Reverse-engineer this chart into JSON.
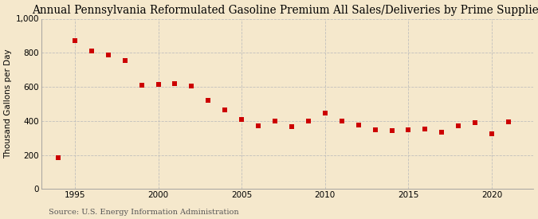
{
  "title": "Annual Pennsylvania Reformulated Gasoline Premium All Sales/Deliveries by Prime Supplier",
  "ylabel": "Thousand Gallons per Day",
  "source": "Source: U.S. Energy Information Administration",
  "background_color": "#f5e8cc",
  "plot_bg_color": "#f5e8cc",
  "marker_color": "#cc0000",
  "grid_color": "#bbbbbb",
  "years": [
    1994,
    1995,
    1996,
    1997,
    1998,
    1999,
    2000,
    2001,
    2002,
    2003,
    2004,
    2005,
    2006,
    2007,
    2008,
    2009,
    2010,
    2011,
    2012,
    2013,
    2014,
    2015,
    2016,
    2017,
    2018,
    2019,
    2020,
    2021
  ],
  "values": [
    182,
    872,
    810,
    785,
    755,
    608,
    612,
    620,
    607,
    522,
    467,
    410,
    370,
    400,
    365,
    398,
    448,
    400,
    375,
    350,
    345,
    348,
    354,
    333,
    370,
    388,
    325,
    393
  ],
  "ylim": [
    0,
    1000
  ],
  "xlim": [
    1993.0,
    2022.5
  ],
  "yticks": [
    0,
    200,
    400,
    600,
    800,
    1000
  ],
  "xticks": [
    1995,
    2000,
    2005,
    2010,
    2015,
    2020
  ],
  "title_fontsize": 9.8,
  "ylabel_fontsize": 7.5,
  "tick_fontsize": 7.5,
  "source_fontsize": 7.0,
  "marker_size": 16
}
